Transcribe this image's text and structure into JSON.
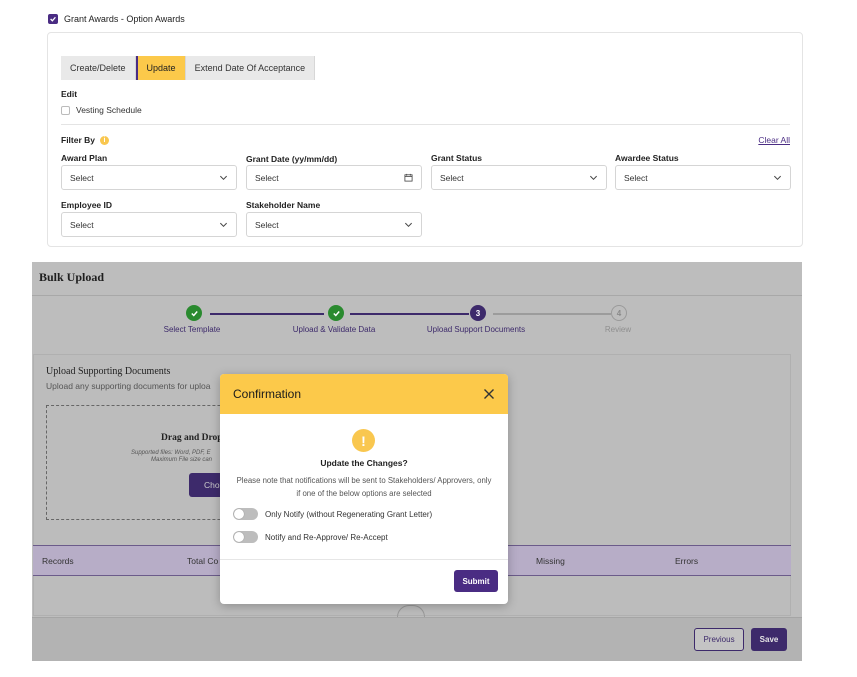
{
  "grant_section": {
    "checkbox_label": "Grant Awards - Option Awards",
    "tabs": [
      {
        "label": "Create/Delete",
        "active": false
      },
      {
        "label": "Update",
        "active": true
      },
      {
        "label": "Extend Date Of Acceptance",
        "active": false
      }
    ],
    "edit_label": "Edit",
    "vesting_label": "Vesting Schedule",
    "filter_label": "Filter By",
    "info_icon": "i",
    "clear_all": "Clear All",
    "fields": {
      "award_plan": {
        "label": "Award Plan",
        "value": "Select"
      },
      "grant_date": {
        "label": "Grant Date (yy/mm/dd)",
        "value": "Select"
      },
      "grant_status": {
        "label": "Grant Status",
        "value": "Select"
      },
      "awardee_status": {
        "label": "Awardee Status",
        "value": "Select"
      },
      "employee_id": {
        "label": "Employee ID",
        "value": "Select"
      },
      "stakeholder_name": {
        "label": "Stakeholder Name",
        "value": "Select"
      }
    }
  },
  "bulk_upload": {
    "title": "Bulk Upload",
    "steps": [
      {
        "label": "Select Template",
        "status": "done",
        "number": ""
      },
      {
        "label": "Upload & Validate Data",
        "status": "done",
        "number": ""
      },
      {
        "label": "Upload Support Documents",
        "status": "current",
        "number": "3"
      },
      {
        "label": "Review",
        "status": "pending",
        "number": "4"
      }
    ],
    "upload_title": "Upload Supporting Documents",
    "upload_subtitle": "Upload any supporting documents for uploa",
    "drop_title": "Drag and Drop",
    "drop_info_line1": "Supported files: Word, PDF, E",
    "drop_info_line2": "Maximum File size can",
    "choose_label": "Cho",
    "table_headers": [
      "Records",
      "Total Co",
      "Missing",
      "Errors"
    ],
    "previous_label": "Previous",
    "save_label": "Save"
  },
  "modal": {
    "title": "Confirmation",
    "warning_glyph": "!",
    "question": "Update the Changes?",
    "note_line1": "Please note that notifications will be sent to Stakeholders/ Approvers, only",
    "note_line2": "if one of the below options are selected",
    "option1": "Only Notify (without Regenerating Grant Letter)",
    "option2": "Notify and Re-Approve/ Re-Accept",
    "submit_label": "Submit"
  },
  "colors": {
    "accent_purple": "#4a2c83",
    "accent_yellow": "#fcc94a",
    "success_green": "#2a8a2f"
  }
}
